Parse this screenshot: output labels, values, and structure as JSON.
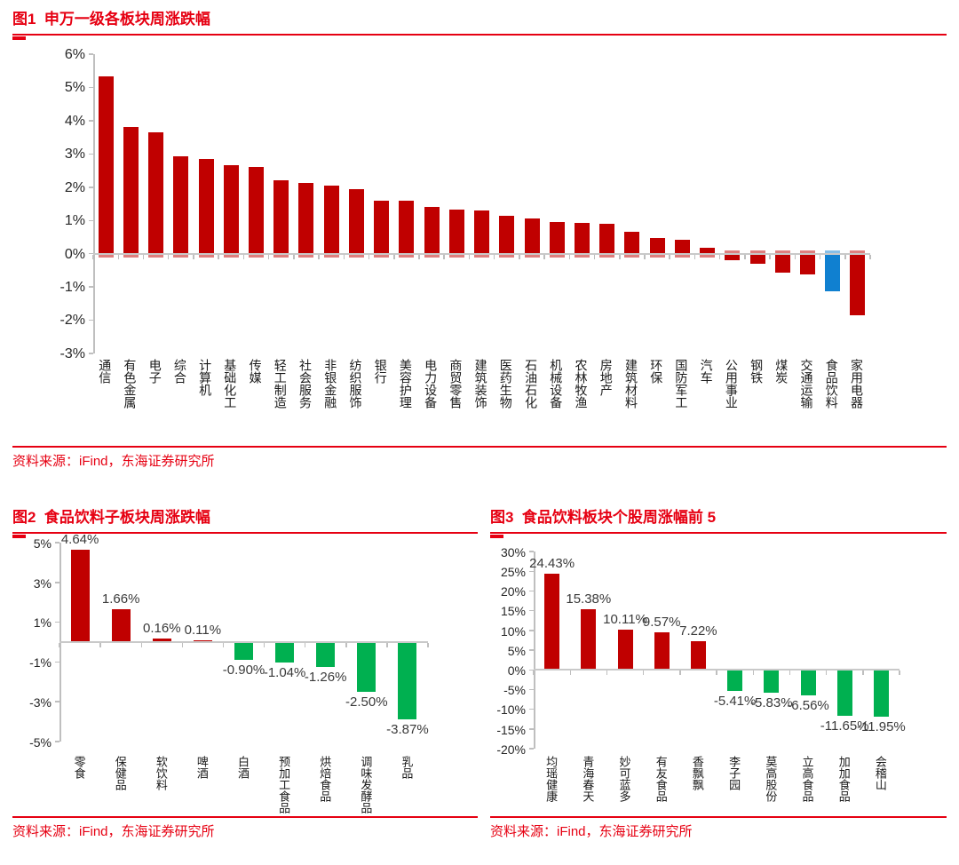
{
  "colors": {
    "accent_red": "#E60012",
    "bar_red": "#C00000",
    "bar_green": "#00B050",
    "bar_blue": "#1080D0",
    "axis_gray": "#BFBFBF"
  },
  "chart_data": [
    {
      "type": "bar",
      "title": "图1  申万一级各板块周涨跌幅",
      "source": "资料来源：iFind，东海证券研究所",
      "ylim": [
        -3,
        6
      ],
      "yticks": [
        6,
        5,
        4,
        3,
        2,
        1,
        0,
        -1,
        -2,
        -3
      ],
      "ytick_suffix": "%",
      "grid": false,
      "legend": "none",
      "categories": [
        "通信",
        "有色金属",
        "电子",
        "综合",
        "计算机",
        "基础化工",
        "传媒",
        "轻工制造",
        "社会服务",
        "非银金融",
        "纺织服饰",
        "银行",
        "美容护理",
        "电力设备",
        "商贸零售",
        "建筑装饰",
        "医药生物",
        "石油石化",
        "机械设备",
        "农林牧渔",
        "房地产",
        "建筑材料",
        "环保",
        "国防军工",
        "汽车",
        "公用事业",
        "钢铁",
        "煤炭",
        "交通运输",
        "食品饮料",
        "家用电器"
      ],
      "values": [
        5.33,
        3.8,
        3.64,
        2.93,
        2.86,
        2.65,
        2.62,
        2.21,
        2.13,
        2.05,
        1.94,
        1.6,
        1.59,
        1.42,
        1.33,
        1.29,
        1.14,
        1.06,
        0.95,
        0.93,
        0.89,
        0.66,
        0.47,
        0.42,
        0.18,
        -0.2,
        -0.3,
        -0.58,
        -0.62,
        -1.12,
        -1.84
      ],
      "colors": {
        "positive": "#C00000",
        "negative": "#C00000"
      },
      "highlight_index": 29,
      "highlight_color": "#1080D0"
    },
    {
      "type": "bar",
      "title": "图2  食品饮料子板块周涨跌幅",
      "source": "资料来源：iFind，东海证券研究所",
      "ylim": [
        -5,
        5
      ],
      "yticks": [
        5,
        3,
        1,
        -1,
        -3,
        -5
      ],
      "ytick_suffix": "%",
      "grid": false,
      "legend": "none",
      "categories": [
        "零食",
        "保健品",
        "软饮料",
        "啤酒",
        "白酒",
        "预加工食品",
        "烘焙食品",
        "调味发酵品",
        "乳品"
      ],
      "values": [
        4.64,
        1.66,
        0.16,
        0.11,
        -0.9,
        -1.04,
        -1.26,
        -2.5,
        -3.87
      ],
      "value_labels": [
        "4.64%",
        "1.66%",
        "0.16%",
        "0.11%",
        "-0.90%",
        "-1.04%",
        "-1.26%",
        "-2.50%",
        "-3.87%"
      ],
      "colors": {
        "positive": "#C00000",
        "negative": "#00B050"
      }
    },
    {
      "type": "bar",
      "title": "图3  食品饮料板块个股周涨幅前 5",
      "source": "资料来源：iFind，东海证券研究所",
      "ylim": [
        -20,
        30
      ],
      "yticks": [
        30,
        25,
        20,
        15,
        10,
        5,
        0,
        -5,
        -10,
        -15,
        -20
      ],
      "ytick_suffix": "%",
      "grid": false,
      "legend": "none",
      "categories": [
        "均瑶健康",
        "青海春天",
        "妙可蓝多",
        "有友食品",
        "香飘飘",
        "李子园",
        "莫高股份",
        "立高食品",
        "加加食品",
        "会稽山"
      ],
      "values": [
        24.43,
        15.38,
        10.11,
        9.57,
        7.22,
        -5.41,
        -5.83,
        -6.56,
        -11.65,
        -11.95
      ],
      "value_labels": [
        "24.43%",
        "15.38%",
        "10.11%",
        "9.57%",
        "7.22%",
        "-5.41%",
        "-5.83%",
        "-6.56%",
        "-11.65%",
        "-11.95%"
      ],
      "colors": {
        "positive": "#C00000",
        "negative": "#00B050"
      }
    }
  ]
}
